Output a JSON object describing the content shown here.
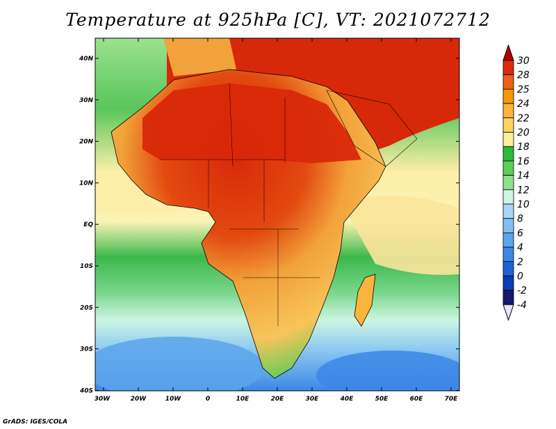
{
  "title": "Temperature at 925hPa [C], VT: 2021072712",
  "credit": "GrADS: IGES/COLA",
  "map": {
    "lon_ticks": [
      "30W",
      "20W",
      "10W",
      "0",
      "10E",
      "20E",
      "30E",
      "40E",
      "50E",
      "60E",
      "70E"
    ],
    "lat_ticks": [
      "40N",
      "30N",
      "20N",
      "10N",
      "EQ",
      "10S",
      "20S",
      "30S",
      "40S"
    ],
    "lon_range": [
      -30,
      75
    ],
    "lat_range": [
      -40,
      45
    ]
  },
  "colorbar": {
    "levels": [
      "30",
      "28",
      "25",
      "24",
      "22",
      "20",
      "18",
      "16",
      "14",
      "12",
      "10",
      "8",
      "6",
      "4",
      "2",
      "0",
      "-2",
      "-4"
    ],
    "colors": [
      "#b20000",
      "#de2a0a",
      "#ee6015",
      "#f6960a",
      "#fbb43c",
      "#fbd35f",
      "#fbef9c",
      "#28bb3c",
      "#5acd5a",
      "#90e08a",
      "#cdf5e2",
      "#a8d7f5",
      "#82bff0",
      "#5aa5eb",
      "#3c87e6",
      "#1e62d6",
      "#0a3cb4",
      "#12196e",
      "#e6e6ff"
    ]
  },
  "colors": {
    "ocean_cool": "#8fcaf0",
    "ocean_mid": "#b5e3f3",
    "ocean_warm": "#fdeeaa",
    "ocean_green": "#3cb84b",
    "land_hot": "#d8280a",
    "land_warm": "#f2a23a",
    "border": "#000000"
  }
}
